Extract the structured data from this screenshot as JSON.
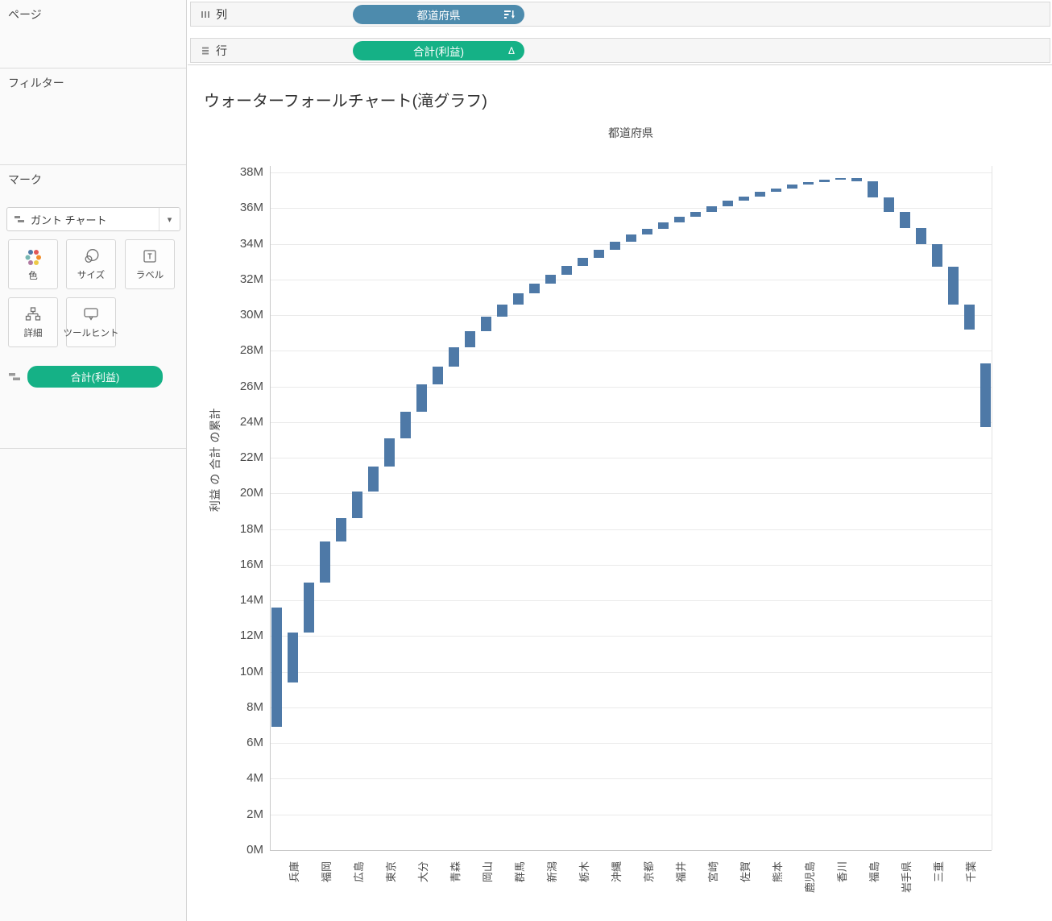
{
  "shelves": {
    "columns_label": "列",
    "rows_label": "行",
    "columns_pill": {
      "label": "都道府県",
      "color": "#4d8bad",
      "icon": "sort-descending-icon"
    },
    "rows_pill": {
      "label": "合計(利益)",
      "color": "#15b186",
      "delta": "Δ"
    }
  },
  "sidebar": {
    "pages_label": "ページ",
    "filters_label": "フィルター",
    "marks_label": "マーク",
    "mark_type": {
      "label": "ガント チャート",
      "caret": "▾",
      "icon": "gantt-mark-icon"
    },
    "mark_buttons": [
      {
        "label": "色",
        "icon": "color-icon"
      },
      {
        "label": "サイズ",
        "icon": "size-icon"
      },
      {
        "label": "ラベル",
        "icon": "label-icon"
      },
      {
        "label": "詳細",
        "icon": "detail-icon"
      },
      {
        "label": "ツールヒント",
        "icon": "tooltip-icon"
      }
    ],
    "marks_field_pill": {
      "label": "合計(利益)",
      "color": "#15b186",
      "icon": "gantt-mark-icon"
    }
  },
  "chart_data": {
    "type": "bar",
    "subtype": "waterfall-gantt",
    "title": "ウォーターフォールチャート(滝グラフ)",
    "column_header": "都道府県",
    "ylabel": "利益 の 合計 の累計",
    "values_in": "millions",
    "ylim": [
      0,
      38
    ],
    "ytick_step": 2,
    "yticks": [
      "0M",
      "2M",
      "4M",
      "6M",
      "8M",
      "10M",
      "12M",
      "14M",
      "16M",
      "18M",
      "20M",
      "22M",
      "24M",
      "26M",
      "28M",
      "30M",
      "32M",
      "34M",
      "36M",
      "38M"
    ],
    "grid": true,
    "bar_color": "#4e79a7",
    "bars": [
      {
        "label": "",
        "start": 6.9,
        "end": 13.6
      },
      {
        "label": "兵庫",
        "start": 9.4,
        "end": 12.2
      },
      {
        "label": "",
        "start": 12.2,
        "end": 15.0
      },
      {
        "label": "福岡",
        "start": 15.0,
        "end": 17.3
      },
      {
        "label": "",
        "start": 17.3,
        "end": 18.6
      },
      {
        "label": "広島",
        "start": 18.6,
        "end": 20.1
      },
      {
        "label": "",
        "start": 20.1,
        "end": 21.5
      },
      {
        "label": "東京",
        "start": 21.5,
        "end": 23.1
      },
      {
        "label": "",
        "start": 23.1,
        "end": 24.6
      },
      {
        "label": "大分",
        "start": 24.6,
        "end": 26.1
      },
      {
        "label": "",
        "start": 26.1,
        "end": 27.1
      },
      {
        "label": "青森",
        "start": 27.1,
        "end": 28.2
      },
      {
        "label": "",
        "start": 28.2,
        "end": 29.1
      },
      {
        "label": "岡山",
        "start": 29.1,
        "end": 29.9
      },
      {
        "label": "",
        "start": 29.9,
        "end": 30.6
      },
      {
        "label": "群馬",
        "start": 30.6,
        "end": 31.2
      },
      {
        "label": "",
        "start": 31.2,
        "end": 31.75
      },
      {
        "label": "新潟",
        "start": 31.75,
        "end": 32.25
      },
      {
        "label": "",
        "start": 32.25,
        "end": 32.75
      },
      {
        "label": "栃木",
        "start": 32.75,
        "end": 33.2
      },
      {
        "label": "",
        "start": 33.2,
        "end": 33.65
      },
      {
        "label": "沖縄",
        "start": 33.65,
        "end": 34.1
      },
      {
        "label": "",
        "start": 34.1,
        "end": 34.5
      },
      {
        "label": "京都",
        "start": 34.5,
        "end": 34.85
      },
      {
        "label": "",
        "start": 34.85,
        "end": 35.2
      },
      {
        "label": "福井",
        "start": 35.2,
        "end": 35.5
      },
      {
        "label": "",
        "start": 35.5,
        "end": 35.8
      },
      {
        "label": "宮崎",
        "start": 35.8,
        "end": 36.1
      },
      {
        "label": "",
        "start": 36.1,
        "end": 36.4
      },
      {
        "label": "佐賀",
        "start": 36.4,
        "end": 36.65
      },
      {
        "label": "",
        "start": 36.65,
        "end": 36.9
      },
      {
        "label": "熊本",
        "start": 36.9,
        "end": 37.1
      },
      {
        "label": "",
        "start": 37.1,
        "end": 37.3
      },
      {
        "label": "鹿児島",
        "start": 37.3,
        "end": 37.45
      },
      {
        "label": "",
        "start": 37.45,
        "end": 37.6
      },
      {
        "label": "香川",
        "start": 37.6,
        "end": 37.7
      },
      {
        "label": "",
        "start": 37.5,
        "end": 37.7
      },
      {
        "label": "福島",
        "start": 36.6,
        "end": 37.5
      },
      {
        "label": "",
        "start": 35.8,
        "end": 36.6
      },
      {
        "label": "岩手県",
        "start": 34.9,
        "end": 35.8
      },
      {
        "label": "",
        "start": 34.0,
        "end": 34.9
      },
      {
        "label": "三重",
        "start": 32.7,
        "end": 34.0
      },
      {
        "label": "",
        "start": 30.6,
        "end": 32.7
      },
      {
        "label": "千葉",
        "start": 29.2,
        "end": 30.6
      },
      {
        "label": "",
        "start": 23.7,
        "end": 27.3
      }
    ]
  }
}
